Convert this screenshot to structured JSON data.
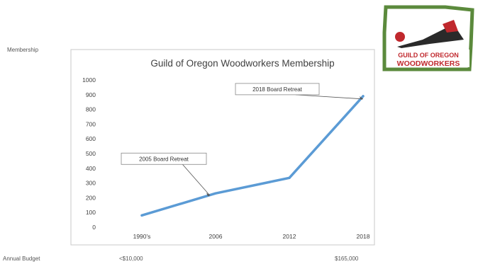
{
  "labels": {
    "left_axis_side": "Membership",
    "bottom_row_title": "Annual Budget"
  },
  "budget": {
    "start": "<$10,000",
    "end": "$165,000"
  },
  "logo": {
    "line1": "GUILD OF OREGON",
    "line2": "WOODWORKERS"
  },
  "colors": {
    "line": "#5b9bd5",
    "logo_green": "#5b8a3c",
    "logo_red": "#c0282d",
    "border": "#c8c8c8"
  },
  "chart_data": {
    "type": "line",
    "title": "Guild of Oregon Woodworkers Membership",
    "categories": [
      "1990's",
      "2006",
      "2012",
      "2018"
    ],
    "series": [
      {
        "values": [
          80,
          230,
          335,
          890
        ]
      }
    ],
    "yticks": [
      0,
      100,
      200,
      300,
      400,
      500,
      600,
      700,
      800,
      900,
      1000
    ],
    "ylim": [
      0,
      1000
    ],
    "grid": false,
    "legend": "none",
    "annotations": [
      {
        "text": "2005 Board Retreat",
        "category": "2006",
        "value": 215
      },
      {
        "text": "2018 Board Retreat",
        "category": "2018",
        "value": 890
      }
    ]
  }
}
